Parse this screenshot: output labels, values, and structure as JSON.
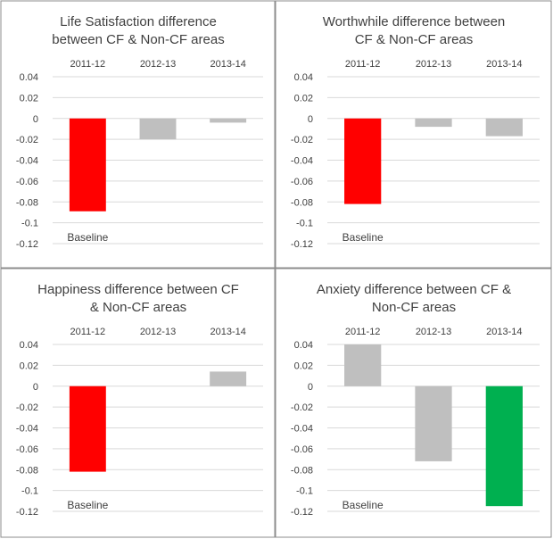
{
  "chart_data": [
    {
      "type": "bar",
      "title_lines": [
        "Life Satisfaction difference",
        "between CF & Non-CF areas"
      ],
      "categories": [
        "2011-12",
        "2012-13",
        "2013-14"
      ],
      "values": [
        -0.089,
        -0.02,
        -0.004
      ],
      "colors": [
        "#ff0000",
        "#bfbfbf",
        "#bfbfbf"
      ],
      "ylim": [
        -0.12,
        0.04
      ],
      "yticks": [
        0.04,
        0.02,
        0,
        -0.02,
        -0.04,
        -0.06,
        -0.08,
        -0.1,
        -0.12
      ],
      "ytick_labels": [
        "0.04",
        "0.02",
        "0",
        "-0.02",
        "-0.04",
        "-0.06",
        "-0.08",
        "-0.1",
        "-0.12"
      ],
      "grid": true,
      "annotation": "Baseline"
    },
    {
      "type": "bar",
      "title_lines": [
        "Worthwhile difference between",
        "CF & Non-CF areas"
      ],
      "categories": [
        "2011-12",
        "2012-13",
        "2013-14"
      ],
      "values": [
        -0.082,
        -0.008,
        -0.017
      ],
      "colors": [
        "#ff0000",
        "#bfbfbf",
        "#bfbfbf"
      ],
      "ylim": [
        -0.12,
        0.04
      ],
      "yticks": [
        0.04,
        0.02,
        0,
        -0.02,
        -0.04,
        -0.06,
        -0.08,
        -0.1,
        -0.12
      ],
      "ytick_labels": [
        "0.04",
        "0.02",
        "0",
        "-0.02",
        "-0.04",
        "-0.06",
        "-0.08",
        "-0.1",
        "-0.12"
      ],
      "grid": true,
      "annotation": "Baseline"
    },
    {
      "type": "bar",
      "title_lines": [
        "Happiness difference between CF",
        "& Non-CF areas"
      ],
      "categories": [
        "2011-12",
        "2012-13",
        "2013-14"
      ],
      "values": [
        -0.082,
        0,
        0.014
      ],
      "colors": [
        "#ff0000",
        "#bfbfbf",
        "#bfbfbf"
      ],
      "ylim": [
        -0.12,
        0.04
      ],
      "yticks": [
        0.04,
        0.02,
        0,
        -0.02,
        -0.04,
        -0.06,
        -0.08,
        -0.1,
        -0.12
      ],
      "ytick_labels": [
        "0.04",
        "0.02",
        "0",
        "-0.02",
        "-0.04",
        "-0.06",
        "-0.08",
        "-0.1",
        "-0.12"
      ],
      "grid": true,
      "annotation": "Baseline"
    },
    {
      "type": "bar",
      "title_lines": [
        "Anxiety difference between CF &",
        "Non-CF areas"
      ],
      "categories": [
        "2011-12",
        "2012-13",
        "2013-14"
      ],
      "values": [
        0.04,
        -0.072,
        -0.115
      ],
      "colors": [
        "#bfbfbf",
        "#bfbfbf",
        "#00b050"
      ],
      "ylim": [
        -0.12,
        0.04
      ],
      "yticks": [
        0.04,
        0.02,
        0,
        -0.02,
        -0.04,
        -0.06,
        -0.08,
        -0.1,
        -0.12
      ],
      "ytick_labels": [
        "0.04",
        "0.02",
        "0",
        "-0.02",
        "-0.04",
        "-0.06",
        "-0.08",
        "-0.1",
        "-0.12"
      ],
      "grid": true,
      "annotation": "Baseline"
    }
  ]
}
